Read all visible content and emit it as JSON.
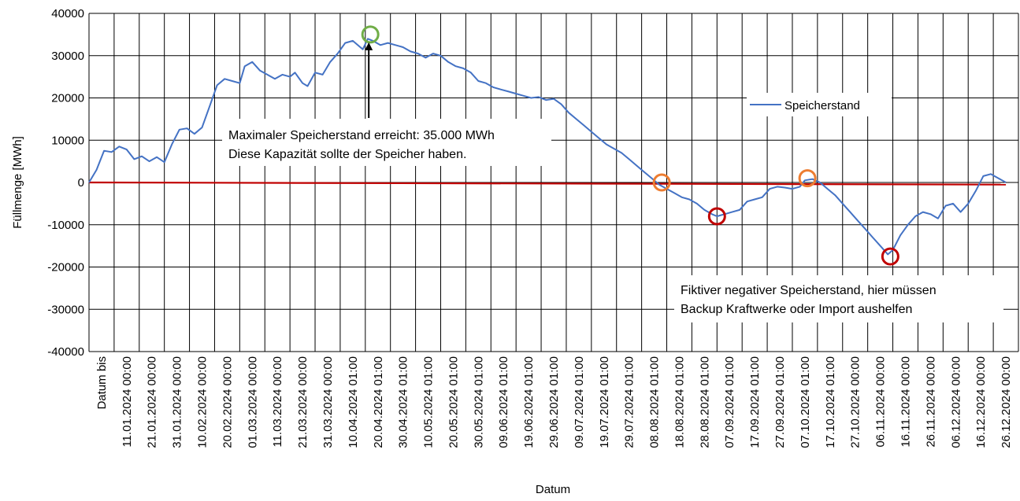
{
  "chart_data": {
    "type": "line",
    "xlabel": "Datum",
    "ylabel": "Füllmenge [MWh]",
    "ylim": [
      -40000,
      40000
    ],
    "yticks": [
      40000,
      30000,
      20000,
      10000,
      0,
      -10000,
      -20000,
      -30000,
      -40000
    ],
    "grid": true,
    "legend_position": "top-right",
    "x_tick_labels": [
      "Datum bis",
      "11.01.2024 00:00",
      "21.01.2024 00:00",
      "31.01.2024 00:00",
      "10.02.2024 00:00",
      "20.02.2024 00:00",
      "01.03.2024 00:00",
      "11.03.2024 00:00",
      "21.03.2024 00:00",
      "31.03.2024 00:00",
      "10.04.2024 01:00",
      "20.04.2024 01:00",
      "30.04.2024 01:00",
      "10.05.2024 01:00",
      "20.05.2024 01:00",
      "30.05.2024 01:00",
      "09.06.2024 01:00",
      "19.06.2024 01:00",
      "29.06.2024 01:00",
      "09.07.2024 01:00",
      "19.07.2024 01:00",
      "29.07.2024 01:00",
      "08.08.2024 01:00",
      "18.08.2024 01:00",
      "28.08.2024 01:00",
      "07.09.2024 01:00",
      "17.09.2024 01:00",
      "27.09.2024 01:00",
      "07.10.2024 01:00",
      "17.10.2024 01:00",
      "27.10.2024 00:00",
      "06.11.2024 00:00",
      "16.11.2024 00:00",
      "26.11.2024 00:00",
      "06.12.2024 00:00",
      "16.12.2024 00:00",
      "26.12.2024 00:00"
    ],
    "series": [
      {
        "name": "Speicherstand",
        "color": "#4472C4",
        "points": [
          {
            "x": 0,
            "y": 0
          },
          {
            "x": 0.3,
            "y": 3000
          },
          {
            "x": 0.6,
            "y": 7500
          },
          {
            "x": 0.9,
            "y": 7200
          },
          {
            "x": 1.2,
            "y": 8500
          },
          {
            "x": 1.5,
            "y": 7800
          },
          {
            "x": 1.8,
            "y": 5500
          },
          {
            "x": 2.1,
            "y": 6200
          },
          {
            "x": 2.4,
            "y": 5000
          },
          {
            "x": 2.7,
            "y": 6000
          },
          {
            "x": 3.0,
            "y": 4800
          },
          {
            "x": 3.3,
            "y": 9000
          },
          {
            "x": 3.6,
            "y": 12500
          },
          {
            "x": 3.9,
            "y": 12800
          },
          {
            "x": 4.2,
            "y": 11500
          },
          {
            "x": 4.5,
            "y": 13000
          },
          {
            "x": 4.8,
            "y": 18000
          },
          {
            "x": 5.1,
            "y": 23000
          },
          {
            "x": 5.4,
            "y": 24500
          },
          {
            "x": 5.7,
            "y": 24000
          },
          {
            "x": 6.0,
            "y": 23500
          },
          {
            "x": 6.2,
            "y": 27500
          },
          {
            "x": 6.5,
            "y": 28500
          },
          {
            "x": 6.8,
            "y": 26500
          },
          {
            "x": 7.1,
            "y": 25500
          },
          {
            "x": 7.4,
            "y": 24500
          },
          {
            "x": 7.7,
            "y": 25500
          },
          {
            "x": 8.0,
            "y": 25000
          },
          {
            "x": 8.2,
            "y": 26000
          },
          {
            "x": 8.5,
            "y": 23500
          },
          {
            "x": 8.7,
            "y": 22800
          },
          {
            "x": 9.0,
            "y": 26000
          },
          {
            "x": 9.3,
            "y": 25500
          },
          {
            "x": 9.6,
            "y": 28500
          },
          {
            "x": 9.9,
            "y": 30500
          },
          {
            "x": 10.2,
            "y": 33000
          },
          {
            "x": 10.5,
            "y": 33500
          },
          {
            "x": 10.7,
            "y": 32500
          },
          {
            "x": 10.9,
            "y": 31500
          },
          {
            "x": 11.1,
            "y": 34000
          },
          {
            "x": 11.3,
            "y": 33500
          },
          {
            "x": 11.6,
            "y": 32500
          },
          {
            "x": 11.9,
            "y": 33000
          },
          {
            "x": 12.2,
            "y": 32500
          },
          {
            "x": 12.5,
            "y": 32000
          },
          {
            "x": 12.8,
            "y": 31000
          },
          {
            "x": 13.1,
            "y": 30500
          },
          {
            "x": 13.4,
            "y": 29500
          },
          {
            "x": 13.7,
            "y": 30500
          },
          {
            "x": 14.0,
            "y": 30000
          },
          {
            "x": 14.3,
            "y": 28500
          },
          {
            "x": 14.6,
            "y": 27500
          },
          {
            "x": 14.9,
            "y": 27000
          },
          {
            "x": 15.2,
            "y": 26000
          },
          {
            "x": 15.5,
            "y": 24000
          },
          {
            "x": 15.8,
            "y": 23500
          },
          {
            "x": 16.1,
            "y": 22500
          },
          {
            "x": 16.4,
            "y": 22000
          },
          {
            "x": 16.7,
            "y": 21500
          },
          {
            "x": 17.0,
            "y": 21000
          },
          {
            "x": 17.3,
            "y": 20500
          },
          {
            "x": 17.6,
            "y": 20000
          },
          {
            "x": 17.9,
            "y": 20200
          },
          {
            "x": 18.2,
            "y": 19500
          },
          {
            "x": 18.5,
            "y": 19800
          },
          {
            "x": 18.8,
            "y": 18500
          },
          {
            "x": 19.1,
            "y": 16500
          },
          {
            "x": 19.4,
            "y": 15000
          },
          {
            "x": 19.7,
            "y": 13500
          },
          {
            "x": 20.0,
            "y": 12000
          },
          {
            "x": 20.3,
            "y": 10500
          },
          {
            "x": 20.6,
            "y": 9000
          },
          {
            "x": 20.9,
            "y": 8000
          },
          {
            "x": 21.2,
            "y": 7000
          },
          {
            "x": 21.5,
            "y": 5500
          },
          {
            "x": 21.8,
            "y": 4000
          },
          {
            "x": 22.1,
            "y": 2500
          },
          {
            "x": 22.4,
            "y": 1000
          },
          {
            "x": 22.7,
            "y": -500
          },
          {
            "x": 23.0,
            "y": -1500
          },
          {
            "x": 23.3,
            "y": -2500
          },
          {
            "x": 23.6,
            "y": -3500
          },
          {
            "x": 23.9,
            "y": -4000
          },
          {
            "x": 24.2,
            "y": -5000
          },
          {
            "x": 24.5,
            "y": -6500
          },
          {
            "x": 24.8,
            "y": -7500
          },
          {
            "x": 25.0,
            "y": -8000
          },
          {
            "x": 25.3,
            "y": -7500
          },
          {
            "x": 25.6,
            "y": -7000
          },
          {
            "x": 25.9,
            "y": -6500
          },
          {
            "x": 26.2,
            "y": -4500
          },
          {
            "x": 26.5,
            "y": -4000
          },
          {
            "x": 26.8,
            "y": -3500
          },
          {
            "x": 27.1,
            "y": -1500
          },
          {
            "x": 27.4,
            "y": -1000
          },
          {
            "x": 27.7,
            "y": -1200
          },
          {
            "x": 28.0,
            "y": -1500
          },
          {
            "x": 28.3,
            "y": -1000
          },
          {
            "x": 28.5,
            "y": 500
          },
          {
            "x": 28.8,
            "y": 800
          },
          {
            "x": 29.1,
            "y": 0
          },
          {
            "x": 29.4,
            "y": -1500
          },
          {
            "x": 29.7,
            "y": -3000
          },
          {
            "x": 30.0,
            "y": -5000
          },
          {
            "x": 30.3,
            "y": -7000
          },
          {
            "x": 30.6,
            "y": -9000
          },
          {
            "x": 30.9,
            "y": -11000
          },
          {
            "x": 31.2,
            "y": -13000
          },
          {
            "x": 31.5,
            "y": -15000
          },
          {
            "x": 31.8,
            "y": -17000
          },
          {
            "x": 32.0,
            "y": -16000
          },
          {
            "x": 32.3,
            "y": -12500
          },
          {
            "x": 32.6,
            "y": -10000
          },
          {
            "x": 32.9,
            "y": -8000
          },
          {
            "x": 33.2,
            "y": -7000
          },
          {
            "x": 33.5,
            "y": -7500
          },
          {
            "x": 33.8,
            "y": -8500
          },
          {
            "x": 34.1,
            "y": -5500
          },
          {
            "x": 34.4,
            "y": -5000
          },
          {
            "x": 34.7,
            "y": -7000
          },
          {
            "x": 35.0,
            "y": -5000
          },
          {
            "x": 35.3,
            "y": -2000
          },
          {
            "x": 35.6,
            "y": 1500
          },
          {
            "x": 35.9,
            "y": 2000
          },
          {
            "x": 36.2,
            "y": 1000
          },
          {
            "x": 36.5,
            "y": 0
          }
        ]
      },
      {
        "color": "#C00000",
        "points": [
          {
            "x": 0,
            "y": 0
          },
          {
            "x": 36.5,
            "y": -500
          }
        ]
      }
    ],
    "markers": [
      {
        "x": 11.2,
        "y": 35000,
        "color": "#70AD47"
      },
      {
        "x": 22.8,
        "y": 0,
        "color": "#ED7D31"
      },
      {
        "x": 28.6,
        "y": 1000,
        "color": "#ED7D31"
      },
      {
        "x": 25.0,
        "y": -8000,
        "color": "#C00000"
      },
      {
        "x": 31.9,
        "y": -17500,
        "color": "#C00000"
      }
    ],
    "annotations": [
      {
        "lines": [
          "Maximaler Speicherstand erreicht: 35.000 MWh",
          "Diese Kapazität sollte der Speicher haben."
        ]
      },
      {
        "lines": [
          "Fiktiver negativer Speicherstand, hier müssen",
          "Backup Kraftwerke oder Import aushelfen"
        ]
      }
    ]
  }
}
